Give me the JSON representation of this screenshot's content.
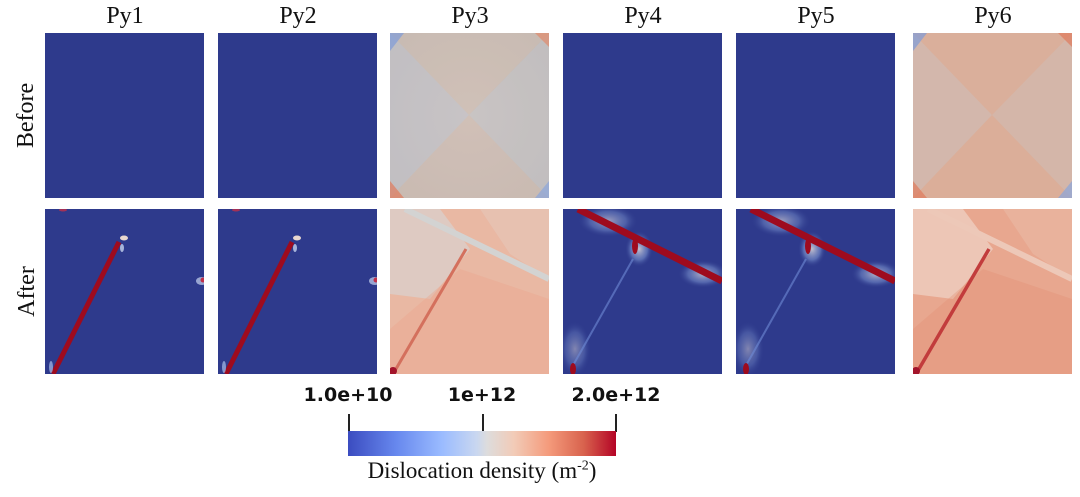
{
  "columns": [
    "Py1",
    "Py2",
    "Py3",
    "Py4",
    "Py5",
    "Py6"
  ],
  "rows": [
    "Before",
    "After"
  ],
  "colormap": {
    "name": "coolwarm",
    "low_color": "#3b4cc0",
    "mid_color": "#dddcdc",
    "high_color": "#b40426",
    "field_blue": "#2e3a8c"
  },
  "colorbar": {
    "ticks": [
      "1.0e+10",
      "1e+12",
      "2.0e+12"
    ],
    "title_main": "Dislocation density (m",
    "title_sup": "-2",
    "title_end": ")"
  },
  "panels": [
    {
      "column": "Py1",
      "row": "Before",
      "state": "uniform-low"
    },
    {
      "column": "Py2",
      "row": "Before",
      "state": "uniform-low"
    },
    {
      "column": "Py3",
      "row": "Before",
      "state": "mid-grey-x-pattern"
    },
    {
      "column": "Py4",
      "row": "Before",
      "state": "uniform-low"
    },
    {
      "column": "Py5",
      "row": "Before",
      "state": "uniform-low"
    },
    {
      "column": "Py6",
      "row": "Before",
      "state": "light-red-x-pattern"
    },
    {
      "column": "Py1",
      "row": "After",
      "state": "single-diagonal-band"
    },
    {
      "column": "Py2",
      "row": "After",
      "state": "single-diagonal-band"
    },
    {
      "column": "Py3",
      "row": "After",
      "state": "crossing-bands-mid"
    },
    {
      "column": "Py4",
      "row": "After",
      "state": "crossing-bands-high"
    },
    {
      "column": "Py5",
      "row": "After",
      "state": "crossing-bands-high"
    },
    {
      "column": "Py6",
      "row": "After",
      "state": "crossing-bands-mid"
    }
  ]
}
